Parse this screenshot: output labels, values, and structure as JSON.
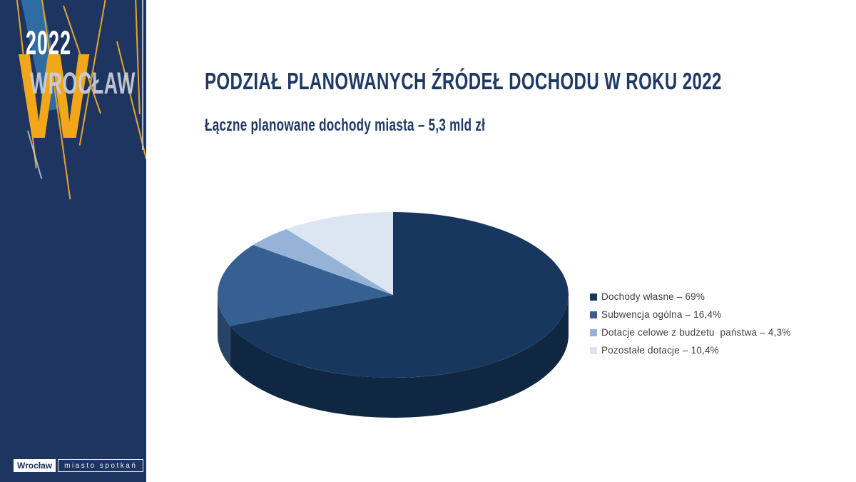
{
  "slide": {
    "title": "PODZIAŁ PLANOWANYCH ŹRÓDEŁ DOCHODU W ROKU 2022",
    "subtitle": "Łączne planowane dochody miasta – 5,3 mld zł"
  },
  "sidebar": {
    "year": "2022",
    "city": "WROCŁAW",
    "watermark_letter": "W",
    "footer_logo": {
      "primary": "Wrocław",
      "secondary": "miasto spotkań"
    },
    "colors": {
      "background": "#1D3560",
      "accent_yellow": "#F2A71B",
      "accent_blue": "#2E6CA3"
    }
  },
  "chart_data": {
    "type": "pie",
    "style": "3d",
    "start_angle_deg": -90,
    "direction": "clockwise",
    "labels": [
      "Dochody własne",
      "Subwencja ogólna",
      "Dotacje celowe z budżetu państwa",
      "Pozostałe dotacje"
    ],
    "values": [
      69,
      16.4,
      4.3,
      10.4
    ],
    "value_labels": [
      "69%",
      "16,4%",
      "4,3%",
      "10,4%"
    ],
    "unit": "%",
    "colors": [
      "#17375E",
      "#376092",
      "#95B3D7",
      "#DCE6F2"
    ],
    "legend_position": "right",
    "legend": [
      {
        "label": "Dochody własne – 69%"
      },
      {
        "label": "Subwencja ogólna – 16,4%"
      },
      {
        "label": "Dotacje celowe z budżetu  państwa – 4,3%"
      },
      {
        "label": "Pozostałe dotacje – 10,4%"
      }
    ]
  }
}
